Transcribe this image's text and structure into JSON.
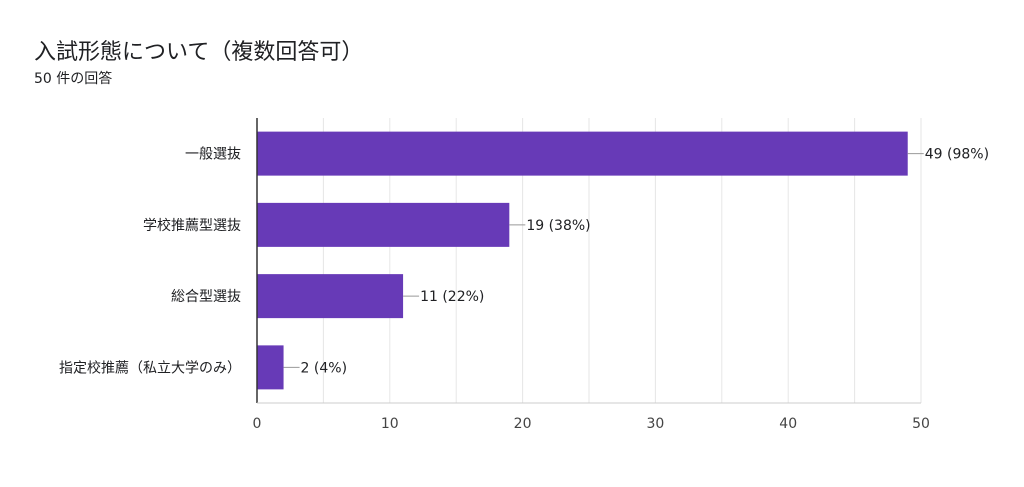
{
  "header": {
    "title": "入試形態について（複数回答可）",
    "subtitle": "50 件の回答"
  },
  "colors": {
    "bar": "#673ab7",
    "grid": "#e6e6e6",
    "axis": "#333333"
  },
  "chart_data": {
    "type": "bar",
    "orientation": "horizontal",
    "categories": [
      "一般選抜",
      "学校推薦型選抜",
      "総合型選抜",
      "指定校推薦（私立大学のみ）"
    ],
    "values": [
      49,
      19,
      11,
      2
    ],
    "data_labels": [
      "49 (98%)",
      "19 (38%)",
      "11 (22%)",
      "2 (4%)"
    ],
    "xlim": [
      0,
      50
    ],
    "xticks": [
      0,
      10,
      20,
      30,
      40,
      50
    ],
    "grid": true,
    "title": "入試形態について（複数回答可）",
    "subtitle": "50 件の回答"
  }
}
